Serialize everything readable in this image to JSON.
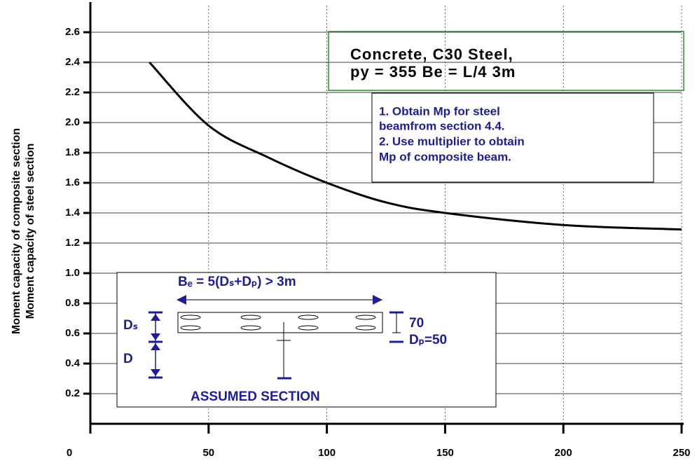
{
  "chart_data": {
    "type": "line",
    "y_label": [
      "Moment capacity of composite section",
      "Moment capacity of steel section"
    ],
    "x": [
      25,
      50,
      75,
      100,
      125,
      150,
      200,
      250
    ],
    "series": [
      {
        "color": "#000000",
        "values": [
          2.4,
          1.98,
          1.77,
          1.6,
          1.47,
          1.4,
          1.32,
          1.29
        ]
      }
    ],
    "xlim": [
      0,
      250
    ],
    "xticks": [
      0,
      50,
      100,
      150,
      200,
      250
    ],
    "ylim": [
      0,
      2.8
    ],
    "yticks": [
      0.2,
      0.4,
      0.6,
      0.8,
      {
        "value": 1,
        "label": "1.0"
      },
      1.2,
      1.4,
      1.6,
      1.8,
      {
        "value": 2,
        "label": "2.0"
      },
      2.2,
      2.4,
      2.6
    ],
    "grid": true,
    "box_text": [
      "Concrete, C30 Steel,",
      "py = 355 Be = L/4  3m"
    ],
    "note_lines": [
      "1.   Obtain Mp for steel",
      "beamfrom section 4.4.",
      "2.   Use multiplier to obtain",
      "Mp of composite beam."
    ],
    "inset": {
      "width_label": "Bₑ = 5(Dₛ+Dₚ) > 3m",
      "ds_label": "Dₛ",
      "d_label": "D",
      "slab_label": "70",
      "dp_label": "Dₚ=50",
      "caption": "ASSUMED SECTION"
    }
  }
}
